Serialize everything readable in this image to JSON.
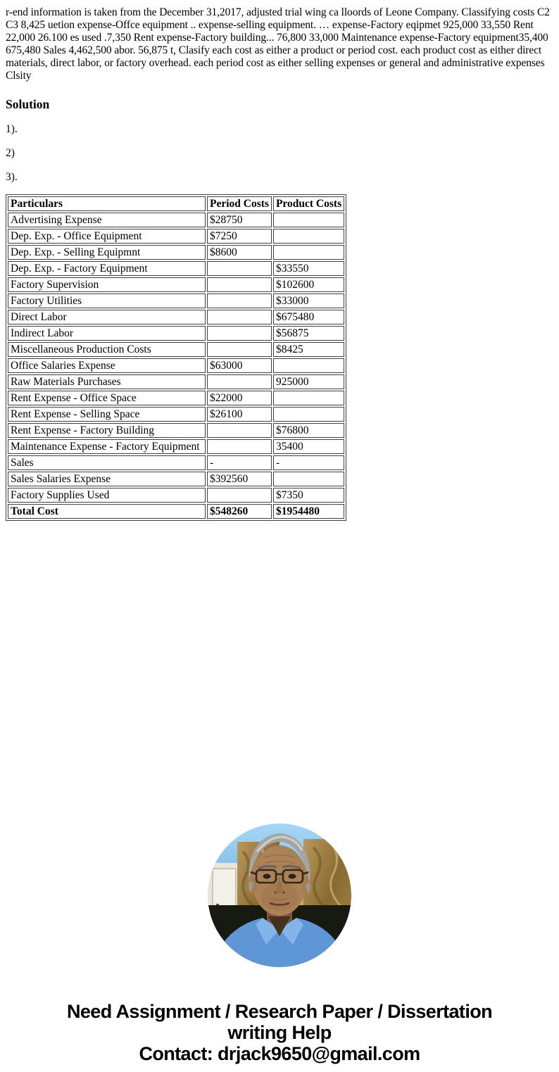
{
  "problem_text": "r-end information is taken from the December 31,2017, adjusted trial wing ca lloords of Leone Company. Classifying costs C2 C3 8,425 uetion expense-Offce equipment .. expense-selling equipment. … expense-Factory eqipmet 925,000 33,550 Rent 22,000 26.100 es used .7,350 Rent expense-Factory building... 76,800 33,000 Maintenance expense-Factory equipment35,400 675,480 Sales 4,462,500 abor. 56,875 t, Clasify each cost as either a product or period cost. each product cost as either direct materials, direct labor, or factory overhead. each period cost as either selling expenses or general and administrative expenses Clsity",
  "solution": {
    "heading": "Solution",
    "items": [
      "1).",
      "2)",
      "3)."
    ]
  },
  "table": {
    "headers": [
      "Particulars",
      "Period Costs",
      "Product Costs"
    ],
    "rows": [
      [
        "Advertising Expense",
        "$28750",
        ""
      ],
      [
        "Dep. Exp. - Office Equipment",
        "$7250",
        ""
      ],
      [
        "Dep. Exp. - Selling Equipmnt",
        "$8600",
        ""
      ],
      [
        "Dep. Exp. - Factory Equipment",
        "",
        "$33550"
      ],
      [
        "Factory Supervision",
        "",
        "$102600"
      ],
      [
        "Factory Utilities",
        "",
        "$33000"
      ],
      [
        "Direct Labor",
        "",
        "$675480"
      ],
      [
        "Indirect Labor",
        "",
        "$56875"
      ],
      [
        "Miscellaneous Production Costs",
        "",
        "$8425"
      ],
      [
        "Office Salaries Expense",
        "$63000",
        ""
      ],
      [
        "Raw Materials Purchases",
        "",
        "925000"
      ],
      [
        "Rent Expense - Office Space",
        "$22000",
        ""
      ],
      [
        "Rent Expense - Selling Space",
        "$26100",
        ""
      ],
      [
        "Rent Expense - Factory Building",
        "",
        "$76800"
      ],
      [
        "Maintenance Expense - Factory Equipment",
        "",
        "35400"
      ],
      [
        "Sales",
        "-",
        "-"
      ],
      [
        "Sales Salaries Expense",
        "$392560",
        ""
      ],
      [
        "Factory Supplies Used",
        "",
        "$7350"
      ],
      [
        "Total Cost",
        "$548260",
        "$1954480"
      ]
    ],
    "total_row_label": "Total Cost"
  },
  "avatar": {
    "description": "circular photo of an elderly man with gray hair and glasses wearing a blue shirt"
  },
  "footer": {
    "line1": "Need Assignment / Research Paper / Dissertation",
    "line2": "writing Help",
    "line3": "Contact: drjack9650@gmail.com"
  },
  "colors": {
    "text": "#000000",
    "table_border": "#3f3f3f",
    "background": "#ffffff",
    "avatar_sky": "#92c8f0",
    "avatar_pillar": "#a5854a",
    "avatar_shirt": "#5f97d6"
  }
}
